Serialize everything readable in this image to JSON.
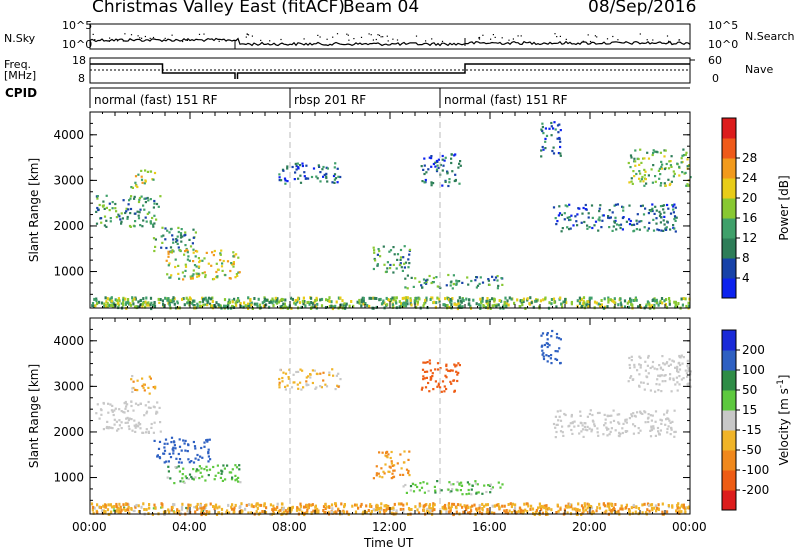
{
  "header": {
    "radar_title": "Christmas Valley East (fitACF)",
    "beam_label": "Beam 04",
    "date": "08/Sep/2016"
  },
  "top_panels": {
    "nsky_label": "N.Sky",
    "nsky_ticks": [
      "10^5",
      "10^0"
    ],
    "nsearch_label": "N.Search",
    "nsearch_ticks": [
      "10^5",
      "10^0"
    ],
    "freq_label": "Freq.",
    "freq_unit": "[MHz]",
    "freq_ticks": [
      "18",
      "8"
    ],
    "nave_label": "Nave",
    "nave_ticks": [
      "60",
      "0"
    ],
    "cpid_label": "CPID",
    "cpid_segments": [
      {
        "label": "normal (fast) 151 RF",
        "start_hour": 0,
        "end_hour": 8
      },
      {
        "label": "rbsp 201 RF",
        "start_hour": 8,
        "end_hour": 14
      },
      {
        "label": "normal (fast) 151 RF",
        "start_hour": 14,
        "end_hour": 24
      }
    ]
  },
  "chart_data": [
    {
      "type": "heatmap",
      "name": "power-panel",
      "ylabel": "Slant Range [km]",
      "xlim": [
        0,
        24
      ],
      "ylim": [
        200,
        4500
      ],
      "y_ticks": [
        "1000",
        "2000",
        "3000",
        "4000"
      ],
      "colorbar": {
        "label": "Power [dB]",
        "ticks": [
          "4",
          "8",
          "12",
          "16",
          "20",
          "24",
          "28"
        ],
        "colors": [
          "#0c22ee",
          "#1742a8",
          "#2e7d58",
          "#3fa06a",
          "#88c832",
          "#e8cc18",
          "#f29a1c",
          "#ef5a1a",
          "#dc1c1c"
        ]
      },
      "regions": [
        {
          "x": [
            0.2,
            2.8
          ],
          "y": [
            2000,
            2700
          ],
          "v": 12
        },
        {
          "x": [
            1.6,
            2.6
          ],
          "y": [
            2850,
            3250
          ],
          "v": 20
        },
        {
          "x": [
            2.5,
            4.2
          ],
          "y": [
            1450,
            2000
          ],
          "v": 12
        },
        {
          "x": [
            3.0,
            6.0
          ],
          "y": [
            850,
            1500
          ],
          "v": 20
        },
        {
          "x": [
            0.8,
            4.8
          ],
          "y": [
            280,
            380
          ],
          "v": 16
        },
        {
          "x": [
            7.5,
            10.0
          ],
          "y": [
            2950,
            3400
          ],
          "v": 8
        },
        {
          "x": [
            11.3,
            12.8
          ],
          "y": [
            1000,
            1600
          ],
          "v": 12
        },
        {
          "x": [
            12.5,
            16.5
          ],
          "y": [
            650,
            950
          ],
          "v": 12
        },
        {
          "x": [
            13.2,
            14.8
          ],
          "y": [
            2900,
            3600
          ],
          "v": 8
        },
        {
          "x": [
            18.0,
            18.8
          ],
          "y": [
            3500,
            4300
          ],
          "v": 8
        },
        {
          "x": [
            18.5,
            23.5
          ],
          "y": [
            1900,
            2500
          ],
          "v": 8
        },
        {
          "x": [
            21.5,
            24.0
          ],
          "y": [
            2900,
            3700
          ],
          "v": 16
        },
        {
          "x": [
            0.0,
            24.0
          ],
          "y": [
            220,
            460
          ],
          "v": 16
        }
      ]
    },
    {
      "type": "heatmap",
      "name": "velocity-panel",
      "ylabel": "Slant Range [km]",
      "xlim": [
        0,
        24
      ],
      "ylim": [
        200,
        4500
      ],
      "y_ticks": [
        "1000",
        "2000",
        "3000",
        "4000"
      ],
      "x_ticks": [
        "00:00",
        "04:00",
        "08:00",
        "12:00",
        "16:00",
        "20:00",
        "00:00"
      ],
      "xlabel": "Time UT",
      "colorbar": {
        "label": "Velocity [m s",
        "label_sup": "-1",
        "label_end": "]",
        "ticks": [
          "200",
          "100",
          "50",
          "15",
          "-15",
          "-50",
          "-100",
          "-200"
        ],
        "colors": [
          "#1a2ad8",
          "#2e60c2",
          "#2e8c46",
          "#5dc83e",
          "#c8c8c8",
          "#f0b428",
          "#f0881c",
          "#ee5c14",
          "#dc1c1c"
        ]
      },
      "regions": [
        {
          "x": [
            0.2,
            2.8
          ],
          "y": [
            2000,
            2700
          ],
          "v": 0
        },
        {
          "x": [
            1.6,
            2.6
          ],
          "y": [
            2850,
            3250
          ],
          "v": -30
        },
        {
          "x": [
            2.5,
            4.8
          ],
          "y": [
            1350,
            1900
          ],
          "v": 150
        },
        {
          "x": [
            3.0,
            6.0
          ],
          "y": [
            900,
            1300
          ],
          "v": 40
        },
        {
          "x": [
            0.8,
            4.8
          ],
          "y": [
            280,
            380
          ],
          "v": 30
        },
        {
          "x": [
            7.5,
            10.0
          ],
          "y": [
            2950,
            3400
          ],
          "v": -30
        },
        {
          "x": [
            11.3,
            12.8
          ],
          "y": [
            1000,
            1600
          ],
          "v": -60
        },
        {
          "x": [
            12.5,
            16.5
          ],
          "y": [
            650,
            950
          ],
          "v": 30
        },
        {
          "x": [
            13.2,
            14.8
          ],
          "y": [
            2900,
            3600
          ],
          "v": -150
        },
        {
          "x": [
            18.0,
            18.8
          ],
          "y": [
            3500,
            4300
          ],
          "v": 150
        },
        {
          "x": [
            18.5,
            23.5
          ],
          "y": [
            1900,
            2500
          ],
          "v": 0
        },
        {
          "x": [
            21.5,
            24.0
          ],
          "y": [
            2900,
            3700
          ],
          "v": 0
        },
        {
          "x": [
            0.0,
            24.0
          ],
          "y": [
            220,
            460
          ],
          "v": -40
        }
      ]
    }
  ]
}
